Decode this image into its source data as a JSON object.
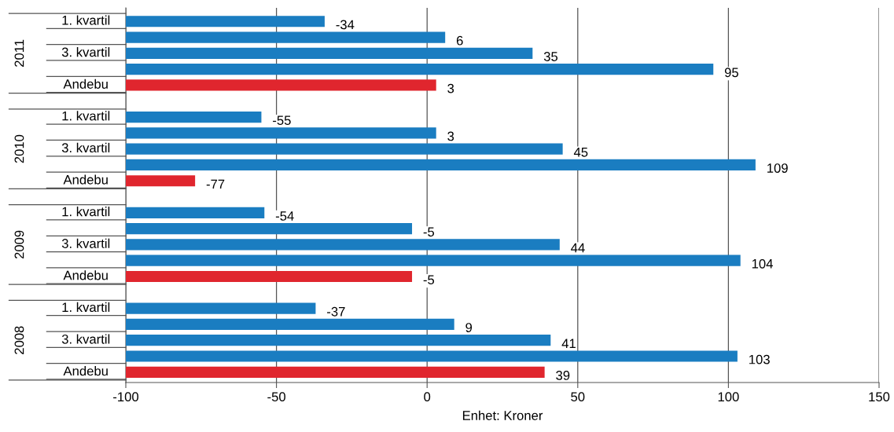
{
  "chart_data": {
    "type": "bar",
    "orientation": "horizontal",
    "xlabel": "Enhet: Kroner",
    "categories": [
      "1. kvartil",
      null,
      "3. kvartil",
      null,
      "Andebu",
      "1. kvartil",
      null,
      "3. kvartil",
      null,
      "Andebu",
      "1. kvartil",
      null,
      "3. kvartil",
      null,
      "Andebu",
      "1. kvartil",
      null,
      "3. kvartil",
      null,
      "Andebu"
    ],
    "base": [
      -100,
      -100,
      -100,
      -100,
      -100,
      -100,
      -100,
      -100,
      -100,
      -100,
      -100,
      -100,
      -100,
      -100,
      -100,
      -100,
      -100,
      -100,
      -100,
      -100
    ],
    "values": [
      66,
      106,
      135,
      195,
      103,
      45,
      103,
      145,
      209,
      23,
      46,
      95,
      144,
      204,
      95,
      63,
      109,
      141,
      203,
      139
    ],
    "value_labels": [
      "-34",
      "6",
      "35",
      "95",
      "3",
      "-55",
      "3",
      "45",
      "109",
      "-77",
      "-54",
      "-5",
      "44",
      "104",
      "-5",
      "-37",
      "9",
      "41",
      "103",
      "39"
    ],
    "colors": [
      "#1a7dc1",
      "#1a7dc1",
      "#1a7dc1",
      "#1a7dc1",
      "#e0262e",
      "#1a7dc1",
      "#1a7dc1",
      "#1a7dc1",
      "#1a7dc1",
      "#e0262e",
      "#1a7dc1",
      "#1a7dc1",
      "#1a7dc1",
      "#1a7dc1",
      "#e0262e",
      "#1a7dc1",
      "#1a7dc1",
      "#1a7dc1",
      "#1a7dc1",
      "#e0262e"
    ],
    "annotations": [
      "2011",
      "2010",
      "2009",
      "2008"
    ],
    "xlim": [
      -100,
      150
    ],
    "xticks": [
      -100,
      -50,
      0,
      50,
      100,
      150
    ],
    "grid": "x"
  }
}
